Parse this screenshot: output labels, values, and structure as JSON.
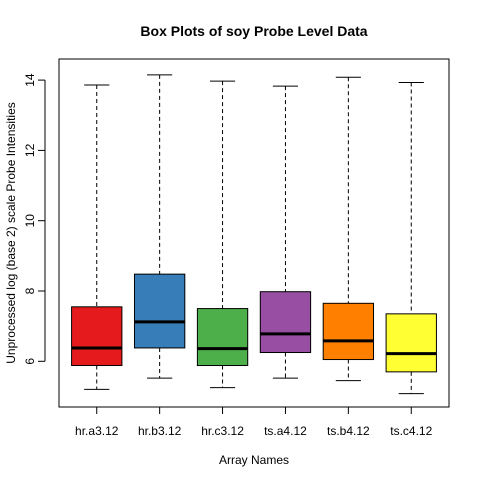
{
  "chart_data": {
    "type": "boxplot",
    "title": "Box Plots of soy Probe Level Data",
    "xlabel": "Array Names",
    "ylabel": "Unprocessed log (base 2) scale Probe Intensities",
    "ylim": [
      4.7,
      14.6
    ],
    "y_ticks": [
      6,
      8,
      10,
      12,
      14
    ],
    "grid": false,
    "legend": "none",
    "categories": [
      "hr.a3.12",
      "hr.b3.12",
      "hr.c3.12",
      "ts.a4.12",
      "ts.b4.12",
      "ts.c4.12"
    ],
    "series": [
      {
        "category": "hr.a3.12",
        "color": "#E41A1C",
        "min": 5.2,
        "q1": 5.88,
        "median": 6.38,
        "q3": 7.55,
        "max": 13.86
      },
      {
        "category": "hr.b3.12",
        "color": "#377EB8",
        "min": 5.52,
        "q1": 6.38,
        "median": 7.12,
        "q3": 8.48,
        "max": 14.15
      },
      {
        "category": "hr.c3.12",
        "color": "#4DAF4A",
        "min": 5.25,
        "q1": 5.88,
        "median": 6.36,
        "q3": 7.5,
        "max": 13.97
      },
      {
        "category": "ts.a4.12",
        "color": "#984EA3",
        "min": 5.52,
        "q1": 6.25,
        "median": 6.78,
        "q3": 7.98,
        "max": 13.83
      },
      {
        "category": "ts.b4.12",
        "color": "#FF7F00",
        "min": 5.45,
        "q1": 6.05,
        "median": 6.58,
        "q3": 7.65,
        "max": 14.08
      },
      {
        "category": "ts.c4.12",
        "color": "#FFFF33",
        "min": 5.08,
        "q1": 5.7,
        "median": 6.22,
        "q3": 7.35,
        "max": 13.93
      }
    ]
  }
}
